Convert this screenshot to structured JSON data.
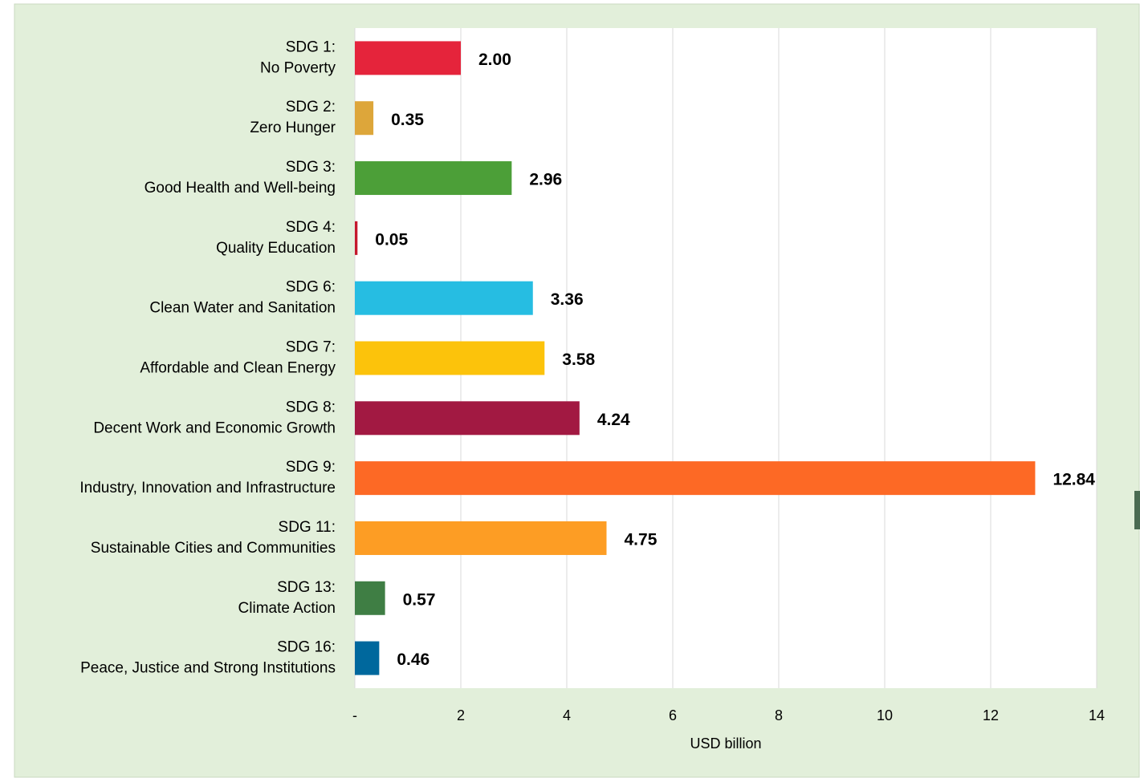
{
  "chart_data": {
    "type": "barh",
    "categories": [
      [
        "SDG 1:",
        "No Poverty"
      ],
      [
        "SDG 2:",
        "Zero Hunger"
      ],
      [
        "SDG 3:",
        "Good Health and Well-being"
      ],
      [
        "SDG 4:",
        "Quality Education"
      ],
      [
        "SDG 6:",
        "Clean Water and Sanitation"
      ],
      [
        "SDG 7:",
        "Affordable and Clean Energy"
      ],
      [
        "SDG 8:",
        "Decent Work and Economic Growth"
      ],
      [
        "SDG 9:",
        "Industry, Innovation and Infrastructure"
      ],
      [
        "SDG 11:",
        "Sustainable Cities and Communities"
      ],
      [
        "SDG 13:",
        "Climate Action"
      ],
      [
        "SDG 16:",
        "Peace, Justice and Strong Institutions"
      ]
    ],
    "values": [
      2.0,
      0.35,
      2.96,
      0.05,
      3.36,
      3.58,
      4.24,
      12.84,
      4.75,
      0.57,
      0.46
    ],
    "value_labels": [
      "2.00",
      "0.35",
      "2.96",
      "0.05",
      "3.36",
      "3.58",
      "4.24",
      "12.84",
      "4.75",
      "0.57",
      "0.46"
    ],
    "colors": [
      "#e5243b",
      "#dda63a",
      "#4c9f38",
      "#c5192d",
      "#26bde2",
      "#fcc30b",
      "#a21942",
      "#fd6925",
      "#fd9d24",
      "#3f7e44",
      "#00689d"
    ],
    "xlabel": "USD billion",
    "xlim": [
      0,
      14
    ],
    "xticks": [
      {
        "value": 0,
        "label": "-"
      },
      2,
      4,
      6,
      8,
      10,
      12,
      14
    ],
    "grid": true
  }
}
